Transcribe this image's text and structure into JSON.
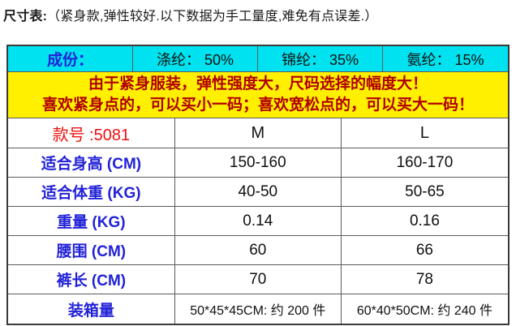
{
  "page": {
    "title_bold": "尺寸表:",
    "title_rest": "（紧身款,弹性较好.以下数据为手工量度,难免有点误差.）"
  },
  "colors": {
    "cyan": "#00e2ef",
    "yellow": "#fff000",
    "notice_red": "#b00000",
    "model_red": "#f01010",
    "label_blue": "#2222d8"
  },
  "size_table": {
    "composition": {
      "label": "成份：",
      "items": [
        "涤纶： 50%",
        "锦纶： 35%",
        "氨纶： 15%"
      ]
    },
    "notice": {
      "line1": "由于紧身服装，弹性强度大，尺码选择的幅度大！",
      "line2": "喜欢紧身点的，可以买小一码；喜欢宽松点的，可以买大一码！"
    },
    "header": {
      "model_label": "款号 :5081",
      "sizes": [
        "M",
        "L"
      ]
    },
    "rows": [
      {
        "label": "适合身高 (CM)",
        "m": "150-160",
        "l": "160-170"
      },
      {
        "label": "适合体重 (KG)",
        "m": "40-50",
        "l": "50-65"
      },
      {
        "label": "重量 (KG)",
        "m": "0.14",
        "l": "0.16"
      },
      {
        "label": "腰围 (CM)",
        "m": "60",
        "l": "66"
      },
      {
        "label": "裤长 (CM)",
        "m": "70",
        "l": "78"
      },
      {
        "label": "装箱量",
        "m": "50*45*45CM: 约 200 件",
        "l": "60*40*50CM: 约 240 件"
      }
    ]
  }
}
